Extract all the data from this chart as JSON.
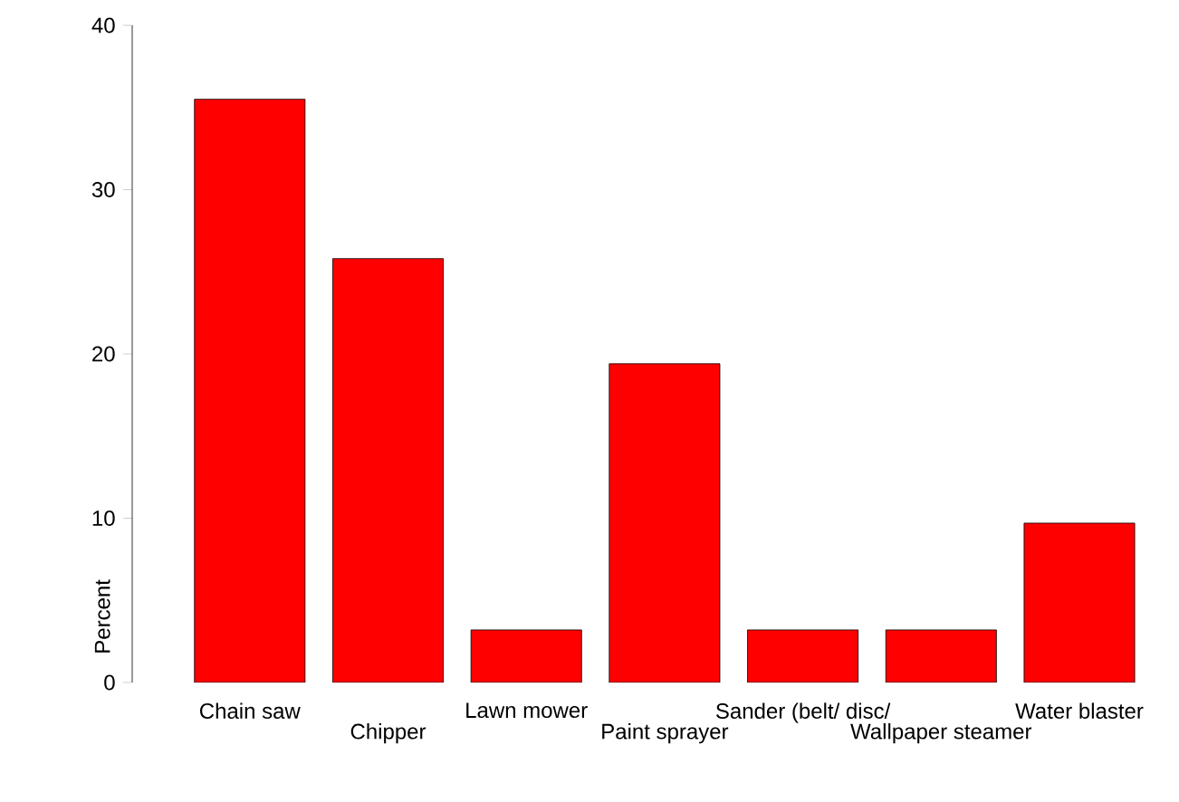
{
  "chart_data": {
    "type": "bar",
    "ylabel": "Percent",
    "categories": [
      "Chain saw",
      "Chipper",
      "Lawn mower",
      "Paint sprayer",
      "Sander (belt/ disc/",
      "Wallpaper steamer",
      "Water blaster"
    ],
    "values": [
      35.5,
      25.8,
      3.2,
      19.4,
      3.2,
      3.2,
      9.7
    ],
    "color": "#ff0000",
    "ylim": [
      0,
      40
    ],
    "yticks": [
      0,
      10,
      20,
      30,
      40
    ],
    "grid": false
  }
}
